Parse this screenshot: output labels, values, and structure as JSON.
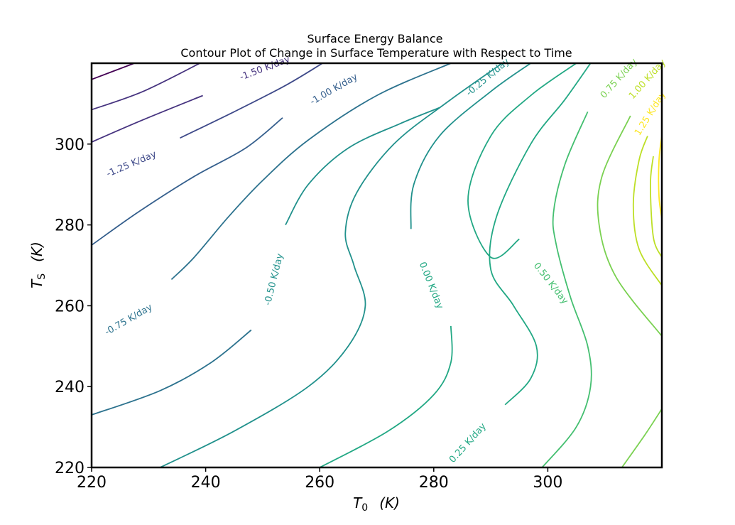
{
  "chart_data": {
    "type": "contour",
    "title": "Surface Energy Balance",
    "subtitle": "Contour Plot of Change in Surface Temperature with Respect to Time",
    "xlabel": {
      "symbol": "T",
      "subscript": "0",
      "unit": "(K)"
    },
    "ylabel": {
      "symbol": "T",
      "subscript": "S",
      "unit": "(K)"
    },
    "xlim": [
      220,
      320
    ],
    "ylim": [
      220,
      320
    ],
    "xticks": [
      220,
      240,
      260,
      280,
      300
    ],
    "yticks": [
      220,
      240,
      260,
      280,
      300
    ],
    "level_unit": "K/day",
    "levels": [
      {
        "value": -1.75,
        "color": "#440154",
        "labels": []
      },
      {
        "value": -1.5,
        "color": "#46337f",
        "labels": [
          {
            "text": "-1.50 K/day",
            "x": 250.4,
            "y": 318.7,
            "angle": -21
          }
        ]
      },
      {
        "value": -1.25,
        "color": "#3e4989",
        "labels": [
          {
            "text": "-1.25 K/day",
            "x": 227.0,
            "y": 295.0,
            "angle": -23
          }
        ]
      },
      {
        "value": -1.0,
        "color": "#355f8d",
        "labels": [
          {
            "text": "-1.00 K/day",
            "x": 262.5,
            "y": 313.5,
            "angle": -30
          }
        ]
      },
      {
        "value": -0.75,
        "color": "#2c728e",
        "labels": [
          {
            "text": "-0.75 K/day",
            "x": 226.5,
            "y": 256.5,
            "angle": -30
          }
        ]
      },
      {
        "value": -0.5,
        "color": "#21918c",
        "labels": [
          {
            "text": "-0.50 K/day",
            "x": 252.0,
            "y": 266.5,
            "angle": -76
          }
        ]
      },
      {
        "value": -0.25,
        "color": "#21918c",
        "labels": [
          {
            "text": "-0.25 K/day",
            "x": 289.5,
            "y": 316.5,
            "angle": -40
          }
        ]
      },
      {
        "value": 0.0,
        "color": "#22a884",
        "labels": [
          {
            "text": "0.00 K/day",
            "x": 279.5,
            "y": 265.0,
            "angle": 68
          }
        ]
      },
      {
        "value": 0.25,
        "color": "#22a884",
        "labels": [
          {
            "text": "0.25 K/day",
            "x": 286.0,
            "y": 226.0,
            "angle": -48
          }
        ]
      },
      {
        "value": 0.5,
        "color": "#44bf70",
        "labels": [
          {
            "text": "0.50 K/day",
            "x": 300.5,
            "y": 265.5,
            "angle": 52
          }
        ]
      },
      {
        "value": 0.75,
        "color": "#7ad151",
        "labels": [
          {
            "text": "0.75 K/day",
            "x": 312.5,
            "y": 316.2,
            "angle": -48
          }
        ]
      },
      {
        "value": 1.0,
        "color": "#bddf26",
        "labels": [
          {
            "text": "1.00 K/day",
            "x": 317.5,
            "y": 316.0,
            "angle": -48
          }
        ]
      },
      {
        "value": 1.25,
        "color": "#fde725",
        "labels": [
          {
            "text": "1.25 K/day",
            "x": 318.0,
            "y": 307.5,
            "angle": -58
          }
        ]
      }
    ],
    "lines": [
      {
        "level": -1.75,
        "points": [
          [
            220,
            316
          ],
          [
            227.5,
            320
          ]
        ]
      },
      {
        "level": -1.5,
        "points": [
          [
            220,
            308.5
          ],
          [
            229,
            313
          ],
          [
            239,
            320
          ]
        ]
      },
      {
        "level": -1.5,
        "points": [
          [
            220,
            300.5
          ],
          [
            229,
            306
          ],
          [
            239.5,
            312
          ]
        ]
      },
      {
        "level": -1.25,
        "points": [
          [
            235.5,
            301.5
          ],
          [
            245,
            308
          ],
          [
            254,
            314.5
          ],
          [
            260.5,
            320
          ]
        ]
      },
      {
        "level": -1.0,
        "points": [
          [
            220,
            275
          ],
          [
            228,
            283
          ],
          [
            238,
            292
          ],
          [
            247,
            299
          ],
          [
            253.5,
            306.5
          ]
        ]
      },
      {
        "level": -0.75,
        "points": [
          [
            234,
            266.5
          ],
          [
            238,
            272
          ],
          [
            244,
            282
          ],
          [
            250,
            291
          ],
          [
            258,
            301
          ],
          [
            270,
            312
          ],
          [
            283,
            320
          ]
        ]
      },
      {
        "level": -0.75,
        "points": [
          [
            220,
            233
          ],
          [
            232,
            239
          ],
          [
            241,
            246
          ],
          [
            248,
            254
          ]
        ]
      },
      {
        "level": -0.5,
        "points": [
          [
            254,
            280
          ],
          [
            258,
            290
          ],
          [
            265,
            299
          ],
          [
            274,
            305
          ],
          [
            281,
            309
          ]
        ]
      },
      {
        "level": -0.5,
        "points": [
          [
            232,
            220
          ],
          [
            245,
            229
          ],
          [
            258,
            240
          ],
          [
            265,
            250
          ],
          [
            268,
            260
          ],
          [
            266,
            270
          ],
          [
            264.5,
            278
          ],
          [
            266.5,
            288
          ],
          [
            273,
            300
          ],
          [
            282,
            310
          ],
          [
            292,
            320
          ]
        ]
      },
      {
        "level": -0.25,
        "points": [
          [
            276,
            279
          ],
          [
            276.5,
            290
          ],
          [
            281,
            302
          ],
          [
            290,
            313
          ],
          [
            297,
            320
          ]
        ]
      },
      {
        "level": 0.0,
        "points": [
          [
            260,
            220
          ],
          [
            272,
            229
          ],
          [
            280,
            238
          ],
          [
            283,
            246
          ],
          [
            283,
            255
          ]
        ]
      },
      {
        "level": 0.0,
        "points": [
          [
            295,
            276.5
          ],
          [
            290,
            272
          ],
          [
            286,
            286
          ],
          [
            290,
            302
          ],
          [
            297,
            312
          ],
          [
            305,
            320
          ]
        ]
      },
      {
        "level": 0.25,
        "points": [
          [
            292.5,
            235.5
          ],
          [
            297,
            242
          ],
          [
            298,
            250
          ],
          [
            294,
            260
          ],
          [
            290,
            269
          ],
          [
            291,
            282
          ],
          [
            297,
            300
          ],
          [
            303,
            311
          ],
          [
            307.5,
            320
          ]
        ]
      },
      {
        "level": 0.5,
        "points": [
          [
            299,
            220
          ],
          [
            305,
            230
          ],
          [
            307.5,
            240
          ],
          [
            307,
            250
          ],
          [
            304,
            262
          ],
          [
            301.5,
            275
          ],
          [
            301,
            283
          ],
          [
            303,
            295
          ],
          [
            307,
            308
          ]
        ]
      },
      {
        "level": 0.75,
        "points": [
          [
            313,
            220
          ],
          [
            317,
            228
          ],
          [
            320,
            234.5
          ]
        ]
      },
      {
        "level": 0.75,
        "points": [
          [
            320,
            252.5
          ],
          [
            312,
            267
          ],
          [
            309,
            280
          ],
          [
            309.5,
            292
          ],
          [
            314.5,
            307
          ]
        ]
      },
      {
        "level": 1.0,
        "points": [
          [
            320,
            265
          ],
          [
            316,
            274
          ],
          [
            315,
            285
          ],
          [
            316,
            296
          ],
          [
            317.5,
            302
          ]
        ]
      },
      {
        "level": 1.0,
        "points": [
          [
            320,
            272
          ],
          [
            318.5,
            277
          ],
          [
            318,
            290
          ],
          [
            318.5,
            297
          ]
        ]
      },
      {
        "level": 1.25,
        "points": [
          [
            320,
            281.5
          ],
          [
            319.5,
            287
          ],
          [
            319.5,
            296
          ],
          [
            320,
            302
          ]
        ]
      }
    ]
  }
}
